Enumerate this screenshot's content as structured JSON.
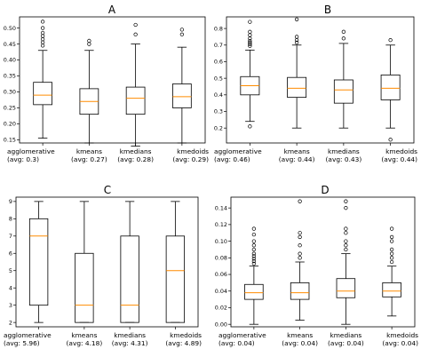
{
  "chart_data": [
    {
      "panel_label": "A",
      "type": "boxplot",
      "categories": [
        "agglomerative",
        "kmeans",
        "kmedians",
        "kmedoids"
      ],
      "averages": [
        "(avg: 0.3)",
        "(avg: 0.27)",
        "(avg: 0.28)",
        "(avg: 0.29)"
      ],
      "ylim": [
        0.14,
        0.535
      ],
      "yticks": [
        0.15,
        0.2,
        0.25,
        0.3,
        0.35,
        0.4,
        0.45,
        0.5
      ],
      "tick_labels": [
        "0.15",
        "0.20",
        "0.25",
        "0.30",
        "0.35",
        "0.40",
        "0.45",
        "0.50"
      ],
      "boxes": [
        {
          "whisker_low": 0.155,
          "q1": 0.26,
          "median": 0.29,
          "q3": 0.33,
          "whisker_high": 0.43,
          "outliers": [
            0.445,
            0.455,
            0.465,
            0.475,
            0.485,
            0.5,
            0.52
          ]
        },
        {
          "whisker_low": 0.14,
          "q1": 0.23,
          "median": 0.27,
          "q3": 0.31,
          "whisker_high": 0.43,
          "outliers": [
            0.45,
            0.46
          ]
        },
        {
          "whisker_low": 0.13,
          "q1": 0.23,
          "median": 0.28,
          "q3": 0.315,
          "whisker_high": 0.45,
          "outliers": [
            0.48,
            0.51
          ]
        },
        {
          "whisker_low": 0.14,
          "q1": 0.25,
          "median": 0.285,
          "q3": 0.325,
          "whisker_high": 0.44,
          "outliers": [
            0.48,
            0.495
          ]
        }
      ],
      "grid": false
    },
    {
      "panel_label": "B",
      "type": "boxplot",
      "categories": [
        "agglomerative",
        "kmeans",
        "kmedians",
        "kmedoids"
      ],
      "averages": [
        "(avg: 0.46)",
        "(avg: 0.44)",
        "(avg: 0.43)",
        "(avg: 0.44)"
      ],
      "ylim": [
        0.11,
        0.87
      ],
      "yticks": [
        0.2,
        0.3,
        0.4,
        0.5,
        0.6,
        0.7,
        0.8
      ],
      "tick_labels": [
        "0.2",
        "0.3",
        "0.4",
        "0.5",
        "0.6",
        "0.7",
        "0.8"
      ],
      "boxes": [
        {
          "whisker_low": 0.24,
          "q1": 0.4,
          "median": 0.455,
          "q3": 0.51,
          "whisker_high": 0.67,
          "outliers": [
            0.695,
            0.705,
            0.715,
            0.725,
            0.74,
            0.76,
            0.78,
            0.84,
            0.21
          ]
        },
        {
          "whisker_low": 0.2,
          "q1": 0.385,
          "median": 0.44,
          "q3": 0.505,
          "whisker_high": 0.7,
          "outliers": [
            0.715,
            0.73,
            0.75,
            0.855
          ]
        },
        {
          "whisker_low": 0.2,
          "q1": 0.35,
          "median": 0.43,
          "q3": 0.49,
          "whisker_high": 0.71,
          "outliers": [
            0.74,
            0.78
          ]
        },
        {
          "whisker_low": 0.2,
          "q1": 0.37,
          "median": 0.44,
          "q3": 0.52,
          "whisker_high": 0.7,
          "outliers": [
            0.73,
            0.13
          ]
        }
      ],
      "grid": false
    },
    {
      "panel_label": "C",
      "type": "boxplot",
      "categories": [
        "agglomerative",
        "kmeans",
        "kmedians",
        "kmedoids"
      ],
      "averages": [
        "(avg: 5.96)",
        "(avg: 4.18)",
        "(avg: 4.31)",
        "(avg: 4.89)"
      ],
      "ylim": [
        1.75,
        9.25
      ],
      "yticks": [
        2,
        3,
        4,
        5,
        6,
        7,
        8,
        9
      ],
      "tick_labels": [
        "2",
        "3",
        "4",
        "5",
        "6",
        "7",
        "8",
        "9"
      ],
      "boxes": [
        {
          "whisker_low": 2,
          "q1": 3,
          "median": 7,
          "q3": 8,
          "whisker_high": 9,
          "outliers": []
        },
        {
          "whisker_low": 2,
          "q1": 2,
          "median": 3,
          "q3": 6,
          "whisker_high": 9,
          "outliers": []
        },
        {
          "whisker_low": 2,
          "q1": 2,
          "median": 3,
          "q3": 7,
          "whisker_high": 9,
          "outliers": []
        },
        {
          "whisker_low": 2,
          "q1": 2,
          "median": 5,
          "q3": 7,
          "whisker_high": 9,
          "outliers": []
        }
      ],
      "grid": false
    },
    {
      "panel_label": "D",
      "type": "boxplot",
      "categories": [
        "agglomerative",
        "kmeans",
        "kmedians",
        "kmedoids"
      ],
      "averages": [
        "(avg: 0.04)",
        "(avg: 0.04)",
        "(avg: 0.04)",
        "(avg: 0.04)"
      ],
      "ylim": [
        -0.003,
        0.153
      ],
      "yticks": [
        0.0,
        0.02,
        0.04,
        0.06,
        0.08,
        0.1,
        0.12,
        0.14
      ],
      "tick_labels": [
        "0.00",
        "0.02",
        "0.04",
        "0.06",
        "0.08",
        "0.10",
        "0.12",
        "0.14"
      ],
      "boxes": [
        {
          "whisker_low": 0.0,
          "q1": 0.03,
          "median": 0.038,
          "q3": 0.048,
          "whisker_high": 0.07,
          "outliers": [
            0.073,
            0.076,
            0.079,
            0.082,
            0.085,
            0.09,
            0.095,
            0.1,
            0.108,
            0.115
          ]
        },
        {
          "whisker_low": 0.005,
          "q1": 0.03,
          "median": 0.038,
          "q3": 0.05,
          "whisker_high": 0.075,
          "outliers": [
            0.08,
            0.085,
            0.095,
            0.105,
            0.11,
            0.148
          ]
        },
        {
          "whisker_low": 0.0,
          "q1": 0.032,
          "median": 0.04,
          "q3": 0.055,
          "whisker_high": 0.085,
          "outliers": [
            0.09,
            0.095,
            0.1,
            0.11,
            0.115,
            0.14,
            0.148
          ]
        },
        {
          "whisker_low": 0.01,
          "q1": 0.033,
          "median": 0.04,
          "q3": 0.05,
          "whisker_high": 0.07,
          "outliers": [
            0.075,
            0.08,
            0.085,
            0.09,
            0.1,
            0.105,
            0.115
          ]
        }
      ],
      "grid": false
    }
  ],
  "colors": {
    "box": "#000000",
    "median": "#ff8c00",
    "background": "#ffffff"
  }
}
